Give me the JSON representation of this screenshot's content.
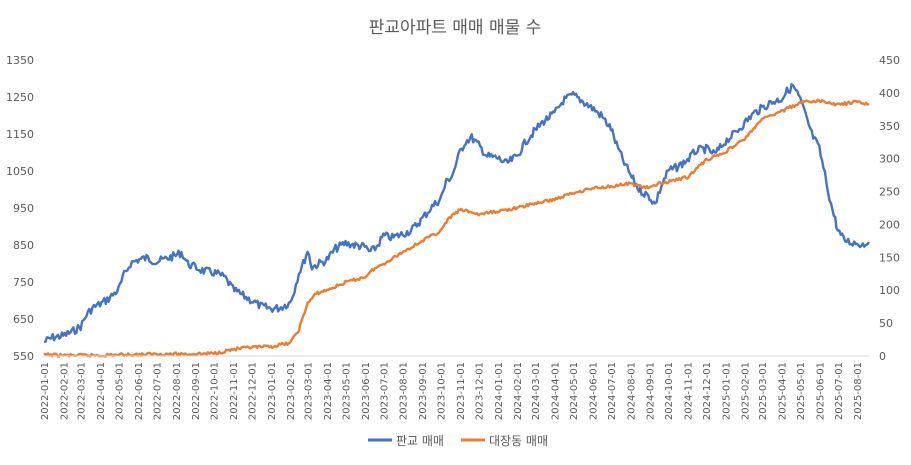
{
  "chart_data": {
    "type": "line",
    "title": "판교아파트 매매 매물 수",
    "xlabel": "",
    "ylabel": "",
    "y_left": {
      "min": 550,
      "max": 1350,
      "ticks": [
        550,
        650,
        750,
        850,
        950,
        1050,
        1150,
        1250,
        1350
      ]
    },
    "y_right": {
      "min": 0,
      "max": 450,
      "ticks": [
        0,
        50,
        100,
        150,
        200,
        250,
        300,
        350,
        400,
        450
      ]
    },
    "x_range": [
      "2022-01-01",
      "2025-08-20"
    ],
    "x_ticks": [
      "2022-01-01",
      "2022-02-01",
      "2022-03-01",
      "2022-04-01",
      "2022-05-01",
      "2022-06-01",
      "2022-07-01",
      "2022-08-01",
      "2022-09-01",
      "2022-10-01",
      "2022-11-01",
      "2022-12-01",
      "2023-01-01",
      "2023-02-01",
      "2023-03-01",
      "2023-04-01",
      "2023-05-01",
      "2023-06-01",
      "2023-07-01",
      "2023-08-01",
      "2023-09-01",
      "2023-10-01",
      "2023-11-01",
      "2023-12-01",
      "2024-01-01",
      "2024-02-01",
      "2024-03-01",
      "2024-04-01",
      "2024-05-01",
      "2024-06-01",
      "2024-07-01",
      "2024-08-01",
      "2024-09-01",
      "2024-10-01",
      "2024-11-01",
      "2024-12-01",
      "2025-01-01",
      "2025-02-01",
      "2025-03-01",
      "2025-04-01",
      "2025-05-01",
      "2025-06-01",
      "2025-07-01",
      "2025-08-01"
    ],
    "grid": false,
    "legend_position": "bottom",
    "series": [
      {
        "name": "판교 매매",
        "axis": "left",
        "color": "#4472C4",
        "points": [
          [
            "2022-01-01",
            588
          ],
          [
            "2022-01-15",
            600
          ],
          [
            "2022-02-01",
            605
          ],
          [
            "2022-02-15",
            615
          ],
          [
            "2022-03-01",
            630
          ],
          [
            "2022-03-10",
            660
          ],
          [
            "2022-03-20",
            680
          ],
          [
            "2022-04-01",
            690
          ],
          [
            "2022-04-15",
            705
          ],
          [
            "2022-05-01",
            730
          ],
          [
            "2022-05-10",
            770
          ],
          [
            "2022-05-20",
            800
          ],
          [
            "2022-06-01",
            810
          ],
          [
            "2022-06-15",
            815
          ],
          [
            "2022-07-01",
            805
          ],
          [
            "2022-07-15",
            812
          ],
          [
            "2022-08-01",
            822
          ],
          [
            "2022-08-10",
            830
          ],
          [
            "2022-08-20",
            800
          ],
          [
            "2022-09-01",
            790
          ],
          [
            "2022-09-15",
            780
          ],
          [
            "2022-10-01",
            775
          ],
          [
            "2022-10-10",
            770
          ],
          [
            "2022-10-20",
            760
          ],
          [
            "2022-11-01",
            730
          ],
          [
            "2022-11-15",
            715
          ],
          [
            "2022-12-01",
            700
          ],
          [
            "2022-12-15",
            685
          ],
          [
            "2023-01-01",
            678
          ],
          [
            "2023-01-15",
            680
          ],
          [
            "2023-02-01",
            695
          ],
          [
            "2023-02-08",
            730
          ],
          [
            "2023-02-15",
            775
          ],
          [
            "2023-02-22",
            800
          ],
          [
            "2023-03-01",
            835
          ],
          [
            "2023-03-08",
            790
          ],
          [
            "2023-03-20",
            800
          ],
          [
            "2023-04-01",
            810
          ],
          [
            "2023-04-15",
            840
          ],
          [
            "2023-05-01",
            855
          ],
          [
            "2023-05-15",
            850
          ],
          [
            "2023-06-01",
            845
          ],
          [
            "2023-06-10",
            830
          ],
          [
            "2023-06-20",
            845
          ],
          [
            "2023-07-01",
            875
          ],
          [
            "2023-07-15",
            870
          ],
          [
            "2023-08-01",
            880
          ],
          [
            "2023-08-15",
            890
          ],
          [
            "2023-09-01",
            920
          ],
          [
            "2023-09-15",
            950
          ],
          [
            "2023-10-01",
            975
          ],
          [
            "2023-10-10",
            1020
          ],
          [
            "2023-10-20",
            1040
          ],
          [
            "2023-11-01",
            1100
          ],
          [
            "2023-11-10",
            1130
          ],
          [
            "2023-11-20",
            1140
          ],
          [
            "2023-12-01",
            1120
          ],
          [
            "2023-12-15",
            1090
          ],
          [
            "2024-01-01",
            1085
          ],
          [
            "2024-01-15",
            1070
          ],
          [
            "2024-02-01",
            1090
          ],
          [
            "2024-02-15",
            1130
          ],
          [
            "2024-03-01",
            1160
          ],
          [
            "2024-03-15",
            1185
          ],
          [
            "2024-04-01",
            1205
          ],
          [
            "2024-04-15",
            1240
          ],
          [
            "2024-05-01",
            1255
          ],
          [
            "2024-05-15",
            1240
          ],
          [
            "2024-06-01",
            1220
          ],
          [
            "2024-06-15",
            1200
          ],
          [
            "2024-07-01",
            1165
          ],
          [
            "2024-07-10",
            1120
          ],
          [
            "2024-07-20",
            1080
          ],
          [
            "2024-08-01",
            1040
          ],
          [
            "2024-08-15",
            1000
          ],
          [
            "2024-09-01",
            980
          ],
          [
            "2024-09-10",
            960
          ],
          [
            "2024-09-20",
            1010
          ],
          [
            "2024-10-01",
            1050
          ],
          [
            "2024-10-15",
            1060
          ],
          [
            "2024-11-01",
            1080
          ],
          [
            "2024-11-15",
            1105
          ],
          [
            "2024-12-01",
            1110
          ],
          [
            "2024-12-15",
            1095
          ],
          [
            "2025-01-01",
            1130
          ],
          [
            "2025-01-15",
            1150
          ],
          [
            "2025-02-01",
            1180
          ],
          [
            "2025-02-15",
            1205
          ],
          [
            "2025-03-01",
            1220
          ],
          [
            "2025-03-15",
            1235
          ],
          [
            "2025-04-01",
            1245
          ],
          [
            "2025-04-10",
            1265
          ],
          [
            "2025-04-20",
            1280
          ],
          [
            "2025-05-01",
            1245
          ],
          [
            "2025-05-10",
            1200
          ],
          [
            "2025-05-20",
            1150
          ],
          [
            "2025-06-01",
            1110
          ],
          [
            "2025-06-10",
            1040
          ],
          [
            "2025-06-20",
            960
          ],
          [
            "2025-07-01",
            890
          ],
          [
            "2025-07-10",
            865
          ],
          [
            "2025-07-20",
            858
          ],
          [
            "2025-08-01",
            855
          ],
          [
            "2025-08-10",
            852
          ],
          [
            "2025-08-20",
            858
          ]
        ]
      },
      {
        "name": "대장동 매매",
        "axis": "right",
        "color": "#ED7D31",
        "points": [
          [
            "2022-01-01",
            2
          ],
          [
            "2022-02-01",
            1
          ],
          [
            "2022-03-01",
            1
          ],
          [
            "2022-04-01",
            1
          ],
          [
            "2022-05-01",
            2
          ],
          [
            "2022-06-01",
            2
          ],
          [
            "2022-07-01",
            3
          ],
          [
            "2022-08-01",
            3
          ],
          [
            "2022-09-01",
            3
          ],
          [
            "2022-10-01",
            4
          ],
          [
            "2022-11-01",
            10
          ],
          [
            "2022-12-01",
            13
          ],
          [
            "2023-01-01",
            14
          ],
          [
            "2023-02-01",
            20
          ],
          [
            "2023-02-15",
            40
          ],
          [
            "2023-03-01",
            80
          ],
          [
            "2023-03-15",
            95
          ],
          [
            "2023-04-01",
            100
          ],
          [
            "2023-05-01",
            112
          ],
          [
            "2023-06-01",
            120
          ],
          [
            "2023-06-15",
            132
          ],
          [
            "2023-07-01",
            140
          ],
          [
            "2023-08-01",
            158
          ],
          [
            "2023-09-01",
            175
          ],
          [
            "2023-10-01",
            190
          ],
          [
            "2023-10-15",
            210
          ],
          [
            "2023-11-01",
            222
          ],
          [
            "2023-11-15",
            220
          ],
          [
            "2023-12-01",
            215
          ],
          [
            "2024-01-01",
            220
          ],
          [
            "2024-02-01",
            225
          ],
          [
            "2024-03-01",
            232
          ],
          [
            "2024-04-01",
            238
          ],
          [
            "2024-05-01",
            248
          ],
          [
            "2024-06-01",
            255
          ],
          [
            "2024-07-01",
            258
          ],
          [
            "2024-08-01",
            262
          ],
          [
            "2024-09-01",
            255
          ],
          [
            "2024-09-15",
            262
          ],
          [
            "2024-10-01",
            265
          ],
          [
            "2024-11-01",
            272
          ],
          [
            "2024-12-01",
            298
          ],
          [
            "2025-01-01",
            310
          ],
          [
            "2025-01-15",
            320
          ],
          [
            "2025-02-01",
            330
          ],
          [
            "2025-03-01",
            360
          ],
          [
            "2025-04-01",
            372
          ],
          [
            "2025-05-01",
            385
          ],
          [
            "2025-06-01",
            388
          ],
          [
            "2025-07-01",
            382
          ],
          [
            "2025-08-01",
            386
          ],
          [
            "2025-08-20",
            383
          ]
        ]
      }
    ]
  }
}
